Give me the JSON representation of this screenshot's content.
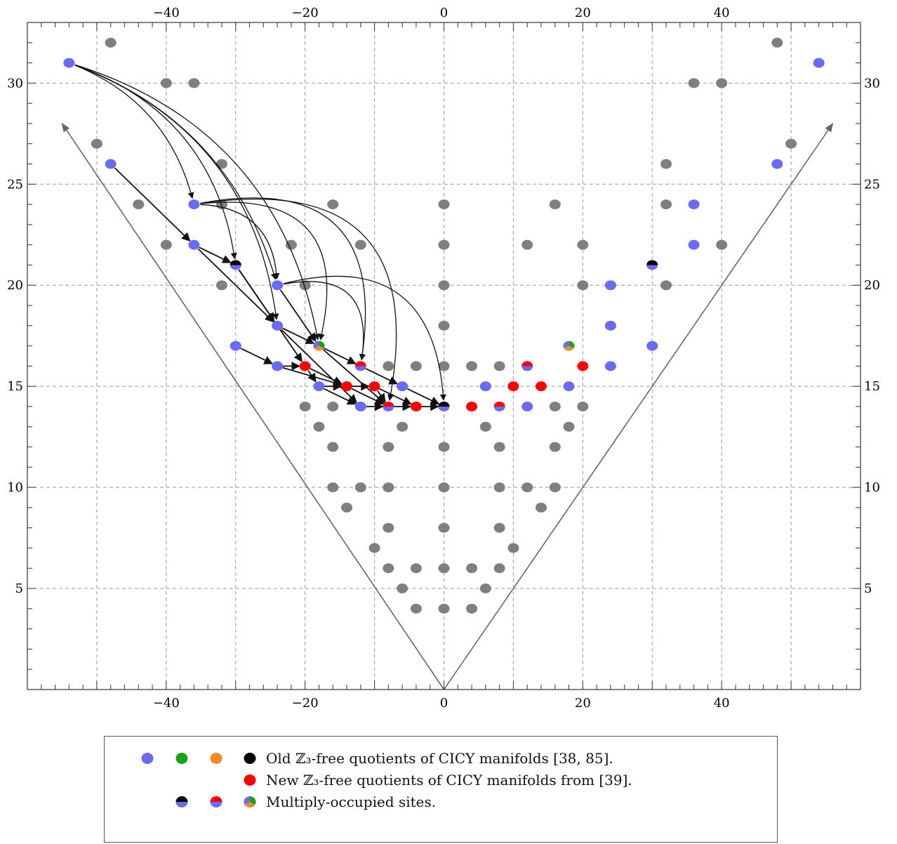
{
  "colors": {
    "blue": "#6b6bf2",
    "green": "#17a317",
    "orange": "#f08a24",
    "black": "#000000",
    "red": "#ff0000",
    "gray": "#7f7f7f",
    "grid": "#999999",
    "arrow": "#111111",
    "cone": "#666666"
  },
  "chart_data": {
    "type": "scatter",
    "xlim": [
      -60,
      60
    ],
    "ylim": [
      0,
      33
    ],
    "x_ticks": [
      -40,
      -20,
      0,
      20,
      40
    ],
    "y_ticks": [
      5,
      10,
      15,
      20,
      25,
      30
    ],
    "x_tick_labels": [
      "−40",
      "−20",
      "0",
      "20",
      "40"
    ],
    "y_tick_labels": [
      "5",
      "10",
      "15",
      "20",
      "25",
      "30"
    ],
    "grid_x": [
      -50,
      -40,
      -30,
      -20,
      -10,
      0,
      10,
      20,
      30,
      40,
      50
    ],
    "grid_y": [
      5,
      10,
      15,
      20,
      25,
      30
    ],
    "grid": true,
    "cone_lines": [
      {
        "from": [
          0,
          0
        ],
        "to": [
          -55,
          28
        ]
      },
      {
        "from": [
          0,
          0
        ],
        "to": [
          56,
          28
        ]
      }
    ],
    "gray_points": [
      [
        -48,
        32
      ],
      [
        -40,
        30
      ],
      [
        -36,
        30
      ],
      [
        -50,
        27
      ],
      [
        -32,
        26
      ],
      [
        -44,
        24
      ],
      [
        -32,
        24
      ],
      [
        -40,
        22
      ],
      [
        -22,
        22
      ],
      [
        -12,
        22
      ],
      [
        -32,
        20
      ],
      [
        -20,
        20
      ],
      [
        -16,
        24
      ],
      [
        0,
        24
      ],
      [
        0,
        22
      ],
      [
        0,
        20
      ],
      [
        0,
        18
      ],
      [
        -8,
        16
      ],
      [
        -4,
        16
      ],
      [
        0,
        16
      ],
      [
        4,
        16
      ],
      [
        8,
        16
      ],
      [
        -20,
        14
      ],
      [
        -16,
        14
      ],
      [
        -18,
        13
      ],
      [
        -6,
        13
      ],
      [
        6,
        13
      ],
      [
        16,
        14
      ],
      [
        20,
        14
      ],
      [
        18,
        13
      ],
      [
        -16,
        12
      ],
      [
        -8,
        12
      ],
      [
        0,
        12
      ],
      [
        8,
        12
      ],
      [
        16,
        12
      ],
      [
        -16,
        10
      ],
      [
        -12,
        10
      ],
      [
        -8,
        10
      ],
      [
        0,
        10
      ],
      [
        8,
        10
      ],
      [
        12,
        10
      ],
      [
        16,
        10
      ],
      [
        -14,
        9
      ],
      [
        14,
        9
      ],
      [
        -8,
        8
      ],
      [
        0,
        8
      ],
      [
        8,
        8
      ],
      [
        -10,
        7
      ],
      [
        10,
        7
      ],
      [
        -8,
        6
      ],
      [
        -4,
        6
      ],
      [
        0,
        6
      ],
      [
        4,
        6
      ],
      [
        8,
        6
      ],
      [
        -6,
        5
      ],
      [
        6,
        5
      ],
      [
        -4,
        4
      ],
      [
        0,
        4
      ],
      [
        4,
        4
      ],
      [
        12,
        22
      ],
      [
        20,
        22
      ],
      [
        16,
        24
      ],
      [
        20,
        20
      ],
      [
        32,
        26
      ],
      [
        32,
        24
      ],
      [
        40,
        22
      ],
      [
        32,
        20
      ],
      [
        36,
        30
      ],
      [
        40,
        30
      ],
      [
        48,
        32
      ],
      [
        50,
        27
      ]
    ],
    "site_points": [
      {
        "x": -54,
        "y": 31,
        "colors": [
          "blue"
        ]
      },
      {
        "x": -48,
        "y": 26,
        "colors": [
          "blue"
        ]
      },
      {
        "x": -36,
        "y": 24,
        "colors": [
          "blue"
        ]
      },
      {
        "x": -36,
        "y": 22,
        "colors": [
          "blue"
        ]
      },
      {
        "x": -30,
        "y": 21,
        "colors": [
          "black",
          "blue"
        ]
      },
      {
        "x": -24,
        "y": 20,
        "colors": [
          "blue"
        ]
      },
      {
        "x": -24,
        "y": 18,
        "colors": [
          "blue"
        ]
      },
      {
        "x": -30,
        "y": 17,
        "colors": [
          "blue"
        ]
      },
      {
        "x": -18,
        "y": 17,
        "colors": [
          "green",
          "orange",
          "blue"
        ]
      },
      {
        "x": -24,
        "y": 16,
        "colors": [
          "blue"
        ]
      },
      {
        "x": -20,
        "y": 16,
        "colors": [
          "red"
        ]
      },
      {
        "x": -12,
        "y": 16,
        "colors": [
          "red",
          "blue"
        ]
      },
      {
        "x": -18,
        "y": 15,
        "colors": [
          "blue"
        ]
      },
      {
        "x": -14,
        "y": 15,
        "colors": [
          "red"
        ]
      },
      {
        "x": -10,
        "y": 15,
        "colors": [
          "red"
        ]
      },
      {
        "x": -6,
        "y": 15,
        "colors": [
          "blue"
        ]
      },
      {
        "x": -12,
        "y": 14,
        "colors": [
          "blue"
        ]
      },
      {
        "x": -8,
        "y": 14,
        "colors": [
          "red",
          "blue"
        ]
      },
      {
        "x": -4,
        "y": 14,
        "colors": [
          "red"
        ]
      },
      {
        "x": 0,
        "y": 14,
        "colors": [
          "black",
          "blue"
        ]
      },
      {
        "x": 4,
        "y": 14,
        "colors": [
          "red"
        ]
      },
      {
        "x": 8,
        "y": 14,
        "colors": [
          "red",
          "blue"
        ]
      },
      {
        "x": 12,
        "y": 14,
        "colors": [
          "blue"
        ]
      },
      {
        "x": 6,
        "y": 15,
        "colors": [
          "blue"
        ]
      },
      {
        "x": 10,
        "y": 15,
        "colors": [
          "red"
        ]
      },
      {
        "x": 14,
        "y": 15,
        "colors": [
          "red"
        ]
      },
      {
        "x": 18,
        "y": 15,
        "colors": [
          "blue"
        ]
      },
      {
        "x": 12,
        "y": 16,
        "colors": [
          "red",
          "blue"
        ]
      },
      {
        "x": 20,
        "y": 16,
        "colors": [
          "red"
        ]
      },
      {
        "x": 18,
        "y": 17,
        "colors": [
          "green",
          "orange",
          "blue"
        ]
      },
      {
        "x": 24,
        "y": 16,
        "colors": [
          "blue"
        ]
      },
      {
        "x": 24,
        "y": 18,
        "colors": [
          "blue"
        ]
      },
      {
        "x": 24,
        "y": 20,
        "colors": [
          "blue"
        ]
      },
      {
        "x": 30,
        "y": 17,
        "colors": [
          "blue"
        ]
      },
      {
        "x": 30,
        "y": 21,
        "colors": [
          "black",
          "blue"
        ]
      },
      {
        "x": 36,
        "y": 22,
        "colors": [
          "blue"
        ]
      },
      {
        "x": 36,
        "y": 24,
        "colors": [
          "blue"
        ]
      },
      {
        "x": 48,
        "y": 26,
        "colors": [
          "blue"
        ]
      },
      {
        "x": 54,
        "y": 31,
        "colors": [
          "blue"
        ]
      }
    ],
    "straight_arrows": [
      [
        [
          -48,
          26
        ],
        [
          -36,
          22
        ]
      ],
      [
        [
          -36,
          22
        ],
        [
          -30,
          21
        ]
      ],
      [
        [
          -36,
          22
        ],
        [
          -24,
          18
        ]
      ],
      [
        [
          -30,
          21
        ],
        [
          -24,
          18
        ]
      ],
      [
        [
          -24,
          18
        ],
        [
          -18,
          17
        ]
      ],
      [
        [
          -30,
          21
        ],
        [
          -20,
          16
        ]
      ],
      [
        [
          -24,
          20
        ],
        [
          -18,
          17
        ]
      ],
      [
        [
          -18,
          17
        ],
        [
          -12,
          16
        ]
      ],
      [
        [
          -12,
          16
        ],
        [
          -6,
          15
        ]
      ],
      [
        [
          -6,
          15
        ],
        [
          0,
          14
        ]
      ],
      [
        [
          -30,
          17
        ],
        [
          -24,
          16
        ]
      ],
      [
        [
          -24,
          16
        ],
        [
          -20,
          16
        ]
      ],
      [
        [
          -20,
          16
        ],
        [
          -18,
          15
        ]
      ],
      [
        [
          -18,
          15
        ],
        [
          -14,
          15
        ]
      ],
      [
        [
          -14,
          15
        ],
        [
          -10,
          15
        ]
      ],
      [
        [
          -10,
          15
        ],
        [
          -8,
          14
        ]
      ],
      [
        [
          -12,
          14
        ],
        [
          -8,
          14
        ]
      ],
      [
        [
          -8,
          14
        ],
        [
          -4,
          14
        ]
      ],
      [
        [
          -4,
          14
        ],
        [
          0,
          14
        ]
      ],
      [
        [
          -20,
          16
        ],
        [
          -14,
          15
        ]
      ],
      [
        [
          -14,
          15
        ],
        [
          -8,
          14
        ]
      ],
      [
        [
          -18,
          15
        ],
        [
          -12,
          14
        ]
      ],
      [
        [
          -24,
          18
        ],
        [
          -12,
          14
        ]
      ],
      [
        [
          -18,
          17
        ],
        [
          -8,
          14
        ]
      ],
      [
        [
          -10,
          15
        ],
        [
          -4,
          14
        ]
      ],
      [
        [
          -24,
          16
        ],
        [
          -14,
          15
        ]
      ]
    ],
    "curved_arrows": [
      {
        "from": [
          -54,
          31
        ],
        "to": [
          -36,
          24
        ],
        "bend": 0.25
      },
      {
        "from": [
          -54,
          31
        ],
        "to": [
          -30,
          21
        ],
        "bend": 0.3
      },
      {
        "from": [
          -54,
          31
        ],
        "to": [
          -24,
          18
        ],
        "bend": 0.3
      },
      {
        "from": [
          -54,
          31
        ],
        "to": [
          -18,
          17
        ],
        "bend": 0.3
      },
      {
        "from": [
          -54,
          31
        ],
        "to": [
          -24,
          20
        ],
        "bend": 0.25
      },
      {
        "from": [
          -36,
          24
        ],
        "to": [
          -18,
          17
        ],
        "bend": 0.7
      },
      {
        "from": [
          -36,
          24
        ],
        "to": [
          -12,
          16
        ],
        "bend": 0.7
      },
      {
        "from": [
          -36,
          24
        ],
        "to": [
          -8,
          14
        ],
        "bend": 0.7
      },
      {
        "from": [
          -36,
          24
        ],
        "to": [
          -24,
          20
        ],
        "bend": 0.45
      },
      {
        "from": [
          -24,
          20
        ],
        "to": [
          -12,
          16
        ],
        "bend": 0.7
      },
      {
        "from": [
          -24,
          20
        ],
        "to": [
          0,
          14
        ],
        "bend": 0.6
      }
    ]
  },
  "legend": {
    "row1_text": "Old ℤ₃-free quotients of CICY manifolds [38, 85].",
    "row2_text": "New ℤ₃-free quotients of CICY manifolds from [39].",
    "row3_text": "Multiply-occupied sites."
  }
}
